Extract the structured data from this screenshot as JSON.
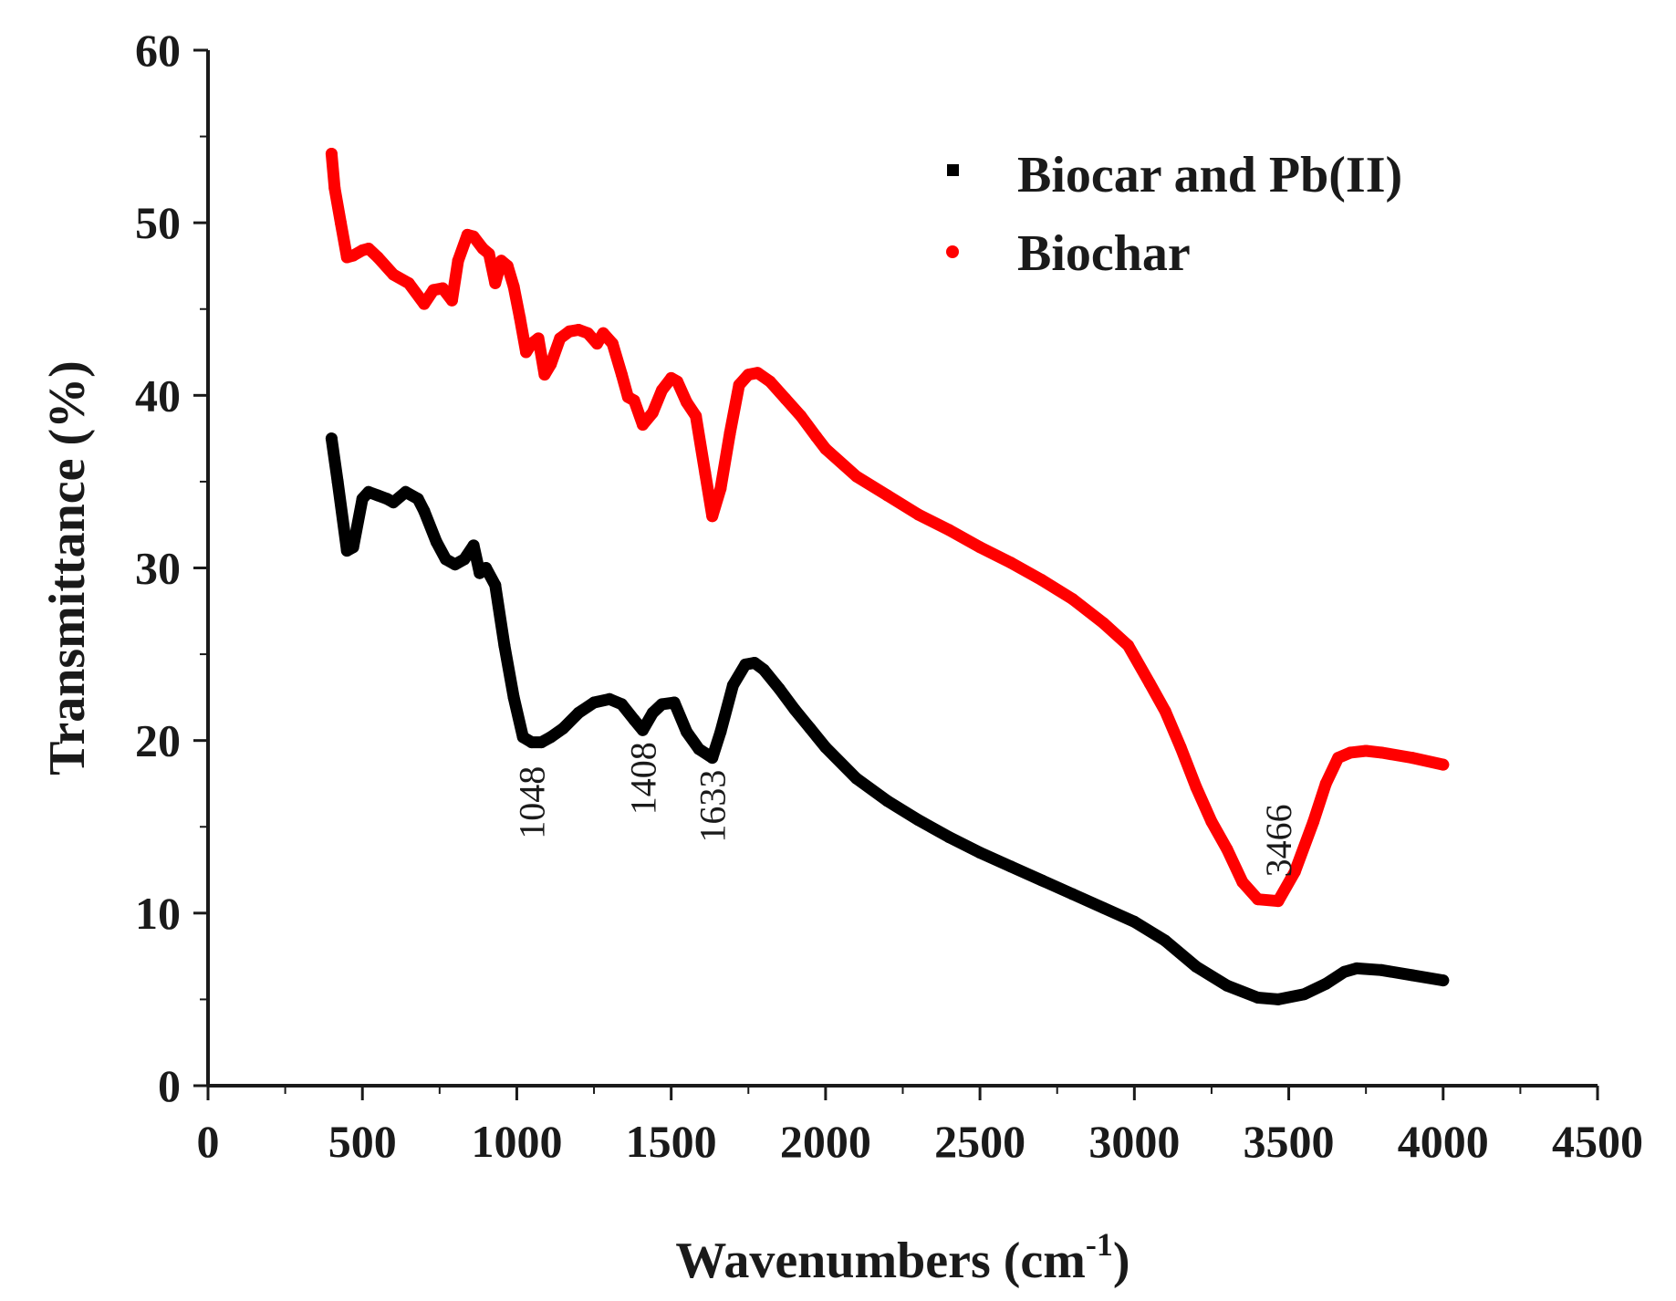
{
  "chart_data": {
    "type": "line",
    "title": "",
    "xlabel_main": "Wavenumbers (cm",
    "xlabel_sup": "-1",
    "xlabel_close": ")",
    "ylabel": "Transmittance (%)",
    "xlim": [
      0,
      4500
    ],
    "ylim": [
      0,
      60
    ],
    "xticks": [
      0,
      500,
      1000,
      1500,
      2000,
      2500,
      3000,
      3500,
      4000,
      4500
    ],
    "yticks": [
      0,
      10,
      20,
      30,
      40,
      50,
      60
    ],
    "legend_position": "top-right",
    "series": [
      {
        "name": "Biocar and Pb(II)",
        "color": "#000000",
        "marker": "square",
        "x": [
          400,
          420,
          450,
          470,
          500,
          520,
          550,
          580,
          600,
          640,
          680,
          700,
          740,
          770,
          800,
          830,
          860,
          880,
          900,
          930,
          960,
          990,
          1020,
          1048,
          1080,
          1110,
          1150,
          1200,
          1250,
          1300,
          1340,
          1380,
          1408,
          1440,
          1470,
          1510,
          1550,
          1590,
          1633,
          1660,
          1700,
          1740,
          1770,
          1800,
          1850,
          1900,
          1950,
          2000,
          2100,
          2200,
          2300,
          2400,
          2500,
          2600,
          2700,
          2800,
          2900,
          3000,
          3100,
          3200,
          3300,
          3400,
          3466,
          3550,
          3620,
          3680,
          3720,
          3800,
          3900,
          4000
        ],
        "values": [
          37.5,
          35,
          31,
          31.2,
          34,
          34.4,
          34.2,
          34,
          33.8,
          34.4,
          34,
          33.3,
          31.5,
          30.5,
          30.2,
          30.5,
          31.3,
          29.7,
          30,
          29,
          25.5,
          22.5,
          20.2,
          19.9,
          19.9,
          20.2,
          20.7,
          21.6,
          22.2,
          22.4,
          22.1,
          21.2,
          20.6,
          21.6,
          22.1,
          22.2,
          20.5,
          19.5,
          19,
          20.5,
          23.2,
          24.4,
          24.5,
          24.1,
          23,
          21.8,
          20.7,
          19.6,
          17.8,
          16.5,
          15.4,
          14.4,
          13.5,
          12.7,
          11.9,
          11.1,
          10.3,
          9.5,
          8.4,
          6.9,
          5.8,
          5.1,
          5,
          5.3,
          5.9,
          6.6,
          6.8,
          6.7,
          6.4,
          6.1
        ]
      },
      {
        "name": "Biochar",
        "color": "#ff0000",
        "marker": "circle",
        "x": [
          400,
          410,
          430,
          450,
          470,
          500,
          520,
          550,
          600,
          650,
          700,
          730,
          760,
          790,
          810,
          840,
          860,
          890,
          910,
          930,
          950,
          970,
          990,
          1010,
          1030,
          1048,
          1070,
          1090,
          1110,
          1140,
          1170,
          1200,
          1230,
          1260,
          1280,
          1310,
          1340,
          1360,
          1380,
          1408,
          1440,
          1470,
          1500,
          1520,
          1550,
          1580,
          1610,
          1633,
          1660,
          1690,
          1720,
          1750,
          1780,
          1820,
          1870,
          1920,
          1970,
          2000,
          2100,
          2200,
          2300,
          2400,
          2500,
          2600,
          2700,
          2800,
          2900,
          2980,
          3050,
          3100,
          3150,
          3200,
          3250,
          3300,
          3350,
          3400,
          3466,
          3520,
          3580,
          3620,
          3660,
          3700,
          3750,
          3800,
          3900,
          4000
        ],
        "values": [
          54,
          52,
          50,
          48,
          48.1,
          48.4,
          48.5,
          48,
          47,
          46.5,
          45.3,
          46.1,
          46.2,
          45.5,
          47.8,
          49.3,
          49.2,
          48.5,
          48.2,
          46.5,
          47.8,
          47.5,
          46.3,
          44.5,
          42.5,
          43,
          43.3,
          41.2,
          41.8,
          43.3,
          43.7,
          43.8,
          43.6,
          43,
          43.6,
          43,
          41.2,
          39.9,
          39.7,
          38.3,
          39,
          40.3,
          41,
          40.8,
          39.6,
          38.8,
          35.5,
          33,
          34.6,
          37.8,
          40.6,
          41.2,
          41.3,
          40.8,
          39.8,
          38.8,
          37.6,
          36.9,
          35.3,
          34.2,
          33.1,
          32.2,
          31.2,
          30.3,
          29.3,
          28.2,
          26.8,
          25.5,
          23.3,
          21.7,
          19.6,
          17.3,
          15.3,
          13.7,
          11.8,
          10.8,
          10.7,
          12.4,
          15.3,
          17.5,
          19,
          19.3,
          19.4,
          19.3,
          19,
          18.6
        ]
      }
    ],
    "annotations": [
      {
        "text": "1048",
        "x": 1048,
        "y": 16.4
      },
      {
        "text": "1408",
        "x": 1408,
        "y": 17.8
      },
      {
        "text": "1633",
        "x": 1633,
        "y": 16.2
      },
      {
        "text": "3466",
        "x": 3466,
        "y": 14.2
      }
    ]
  }
}
